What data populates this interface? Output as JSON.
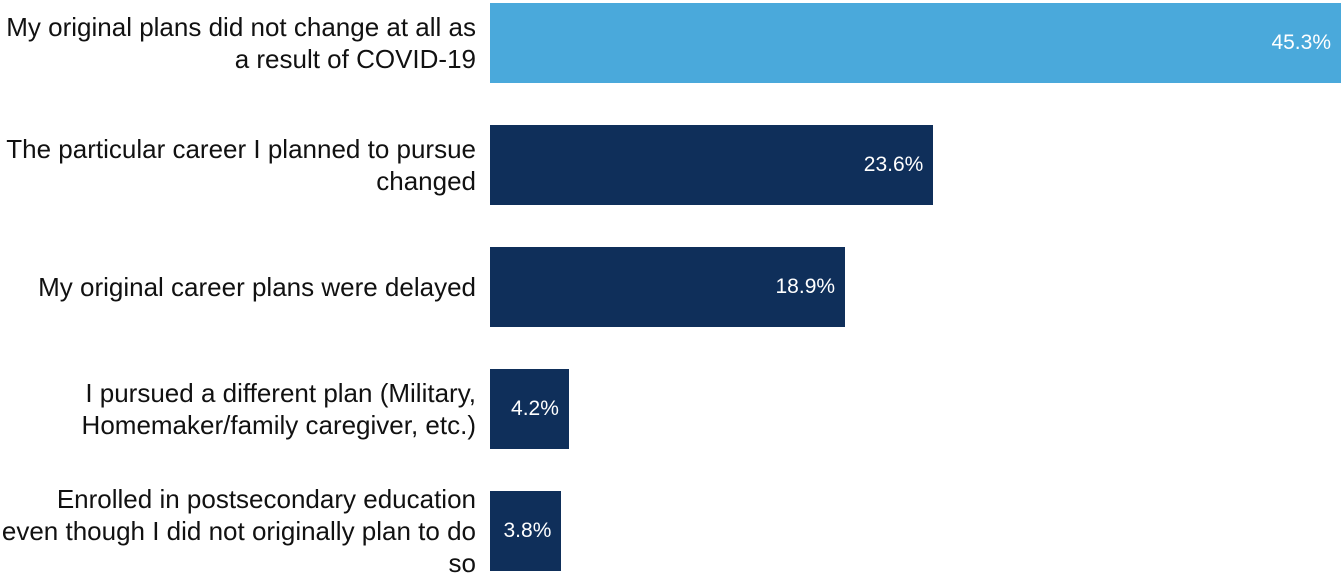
{
  "chart_data": {
    "type": "bar",
    "orientation": "horizontal",
    "categories": [
      "My original plans did not change at all as a result of COVID-19",
      "The particular career I planned to pursue changed",
      "My original career plans were delayed",
      "I pursued a different plan (Military, Homemaker/family caregiver, etc.)",
      "Enrolled in postsecondary education even though I did not originally plan to do so"
    ],
    "values": [
      45.3,
      23.6,
      18.9,
      4.2,
      3.8
    ],
    "value_labels": [
      "45.3%",
      "23.6%",
      "18.9%",
      "4.2%",
      "3.8%"
    ],
    "colors": [
      "#4aa9db",
      "#0f2f5a",
      "#0f2f5a",
      "#0f2f5a",
      "#0f2f5a"
    ]
  }
}
